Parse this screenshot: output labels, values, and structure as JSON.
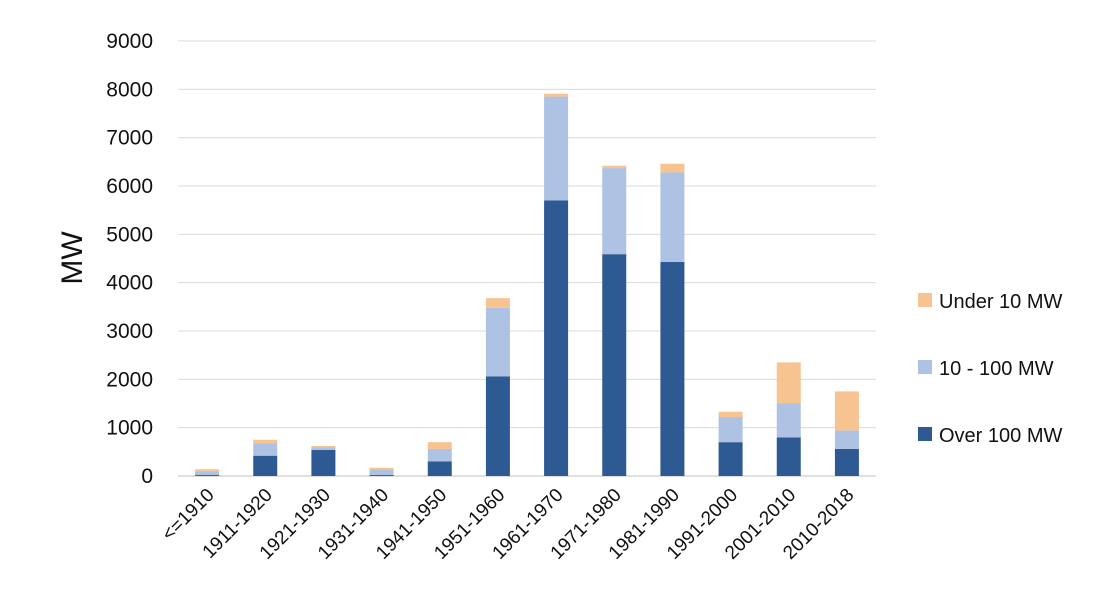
{
  "chart_data": {
    "type": "bar",
    "stacked": true,
    "ylabel": "MW",
    "xlabel": "",
    "title": "",
    "ylim": [
      0,
      9000
    ],
    "yticks": [
      0,
      1000,
      2000,
      3000,
      4000,
      5000,
      6000,
      7000,
      8000,
      9000
    ],
    "grid": true,
    "legend_position": "right",
    "categories": [
      "<=1910",
      "1911-1920",
      "1921-1930",
      "1931-1940",
      "1941-1950",
      "1951-1960",
      "1961-1970",
      "1971-1980",
      "1981-1990",
      "1991-2000",
      "2001-2010",
      "2010-2018"
    ],
    "series": [
      {
        "name": "Over 100 MW",
        "color": "#2e5a93",
        "values": [
          20,
          420,
          540,
          20,
          300,
          2060,
          5700,
          4590,
          4430,
          700,
          800,
          560
        ]
      },
      {
        "name": "10 - 100 MW",
        "color": "#aec3e3",
        "values": [
          80,
          260,
          50,
          120,
          260,
          1420,
          2150,
          1780,
          1850,
          520,
          700,
          380
        ]
      },
      {
        "name": "Under 10 MW",
        "color": "#f7c391",
        "values": [
          40,
          70,
          30,
          30,
          140,
          200,
          60,
          50,
          180,
          110,
          850,
          810
        ]
      }
    ]
  }
}
